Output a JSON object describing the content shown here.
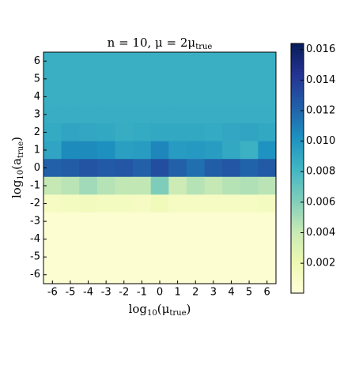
{
  "chart_data": {
    "type": "heatmap",
    "title": {
      "main": "n = 10,  μ = 2μ",
      "sub": "true"
    },
    "xlabel": {
      "main": "log",
      "base": "10",
      "open": "(μ",
      "sub": "true",
      "close": ")"
    },
    "ylabel": {
      "main": "log",
      "base": "10",
      "open": "(a",
      "sub": "true",
      "close": ")"
    },
    "x": [
      -6,
      -5,
      -4,
      -3,
      -2,
      -1,
      0,
      1,
      2,
      3,
      4,
      5,
      6
    ],
    "y": [
      6,
      5,
      4,
      3,
      2,
      1,
      0,
      -1,
      -2,
      -3,
      -4,
      -5,
      -6
    ],
    "xlim": [
      -6.5,
      6.5
    ],
    "ylim": [
      -6.5,
      6.5
    ],
    "xticks": [
      -6,
      -5,
      -4,
      -3,
      -2,
      -1,
      0,
      1,
      2,
      3,
      4,
      5,
      6
    ],
    "yticks": [
      6,
      5,
      4,
      3,
      2,
      1,
      0,
      -1,
      -2,
      -3,
      -4,
      -5,
      -6
    ],
    "colormap": "YlGnBu",
    "clim": [
      4e-05,
      0.0164
    ],
    "cticks": [
      0.002,
      0.004,
      0.006,
      0.008,
      {
        "value": 0.01,
        "label": "0.010"
      },
      0.012,
      0.014,
      0.016
    ],
    "z": [
      [
        0.0086,
        0.0086,
        0.0086,
        0.0086,
        0.0086,
        0.0086,
        0.0086,
        0.0086,
        0.0086,
        0.0086,
        0.0086,
        0.0086,
        0.0086
      ],
      [
        0.0086,
        0.0086,
        0.0086,
        0.0086,
        0.0086,
        0.0086,
        0.0086,
        0.0086,
        0.0086,
        0.0086,
        0.0086,
        0.0086,
        0.0086
      ],
      [
        0.0086,
        0.0086,
        0.0086,
        0.0086,
        0.0086,
        0.0086,
        0.0086,
        0.0086,
        0.0086,
        0.0086,
        0.0086,
        0.0086,
        0.0086
      ],
      [
        0.0087,
        0.0087,
        0.0087,
        0.0087,
        0.0087,
        0.0087,
        0.0087,
        0.0087,
        0.0087,
        0.0087,
        0.0087,
        0.0087,
        0.0087
      ],
      [
        0.0089,
        0.0092,
        0.0091,
        0.009,
        0.0088,
        0.0089,
        0.009,
        0.009,
        0.009,
        0.0089,
        0.0091,
        0.0092,
        0.009
      ],
      [
        0.0092,
        0.0105,
        0.0105,
        0.0103,
        0.0095,
        0.0096,
        0.0107,
        0.0097,
        0.0098,
        0.0096,
        0.009,
        0.0085,
        0.0102
      ],
      [
        0.0122,
        0.0124,
        0.0128,
        0.0125,
        0.0127,
        0.0122,
        0.0131,
        0.0122,
        0.0116,
        0.0123,
        0.0127,
        0.0121,
        0.0125
      ],
      [
        0.0042,
        0.0045,
        0.0052,
        0.0046,
        0.0043,
        0.0043,
        0.0062,
        0.0038,
        0.0046,
        0.0042,
        0.0046,
        0.0048,
        0.0045
      ],
      [
        0.0012,
        0.0013,
        0.0014,
        0.0013,
        0.0013,
        0.0012,
        0.0016,
        0.0012,
        0.0012,
        0.0012,
        0.0012,
        0.0012,
        0.0013
      ],
      [
        0.0004,
        0.0004,
        0.0004,
        0.0004,
        0.0004,
        0.0004,
        0.0004,
        0.0004,
        0.0004,
        0.0004,
        0.0004,
        0.0004,
        0.0004
      ],
      [
        0.0004,
        0.0004,
        0.0004,
        0.0004,
        0.0004,
        0.0004,
        0.0004,
        0.0004,
        0.0004,
        0.0004,
        0.0004,
        0.0004,
        0.0004
      ],
      [
        0.0004,
        0.0004,
        0.0004,
        0.0004,
        0.0004,
        0.0004,
        0.0004,
        0.0004,
        0.0004,
        0.0004,
        0.0004,
        0.0004,
        0.0004
      ],
      [
        0.0004,
        0.0004,
        0.0004,
        0.0004,
        0.0004,
        0.0004,
        0.0004,
        0.0004,
        0.0004,
        0.0004,
        0.0004,
        0.0004,
        0.0004
      ]
    ]
  }
}
